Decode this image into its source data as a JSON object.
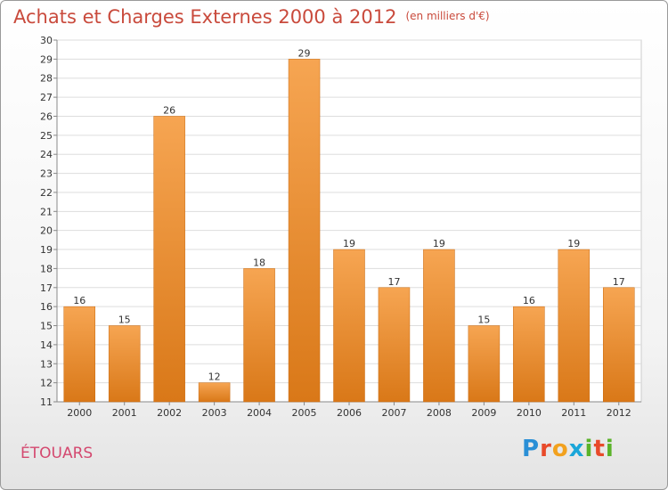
{
  "header": {
    "title": "Achats et Charges Externes 2000 à 2012",
    "unit": "(en milliers d'€)"
  },
  "footer": {
    "place": "ÉTOUARS",
    "brand_letters": [
      "P",
      "r",
      "o",
      "x",
      "i",
      "t",
      "i"
    ],
    "brand_colors": [
      "#2a8fd6",
      "#e84a2a",
      "#f2a11e",
      "#1aa6d9",
      "#5bb32a",
      "#e84a2a",
      "#5bb32a"
    ]
  },
  "colors": {
    "title": "#c94a3c",
    "bar_top": "#f6a552",
    "bar_bottom": "#d97818",
    "grid": "#dddddd",
    "place": "#d4486f"
  },
  "chart_data": {
    "type": "bar",
    "title": "Achats et Charges Externes 2000 à 2012",
    "subtitle": "(en milliers d'€)",
    "categories": [
      "2000",
      "2001",
      "2002",
      "2003",
      "2004",
      "2005",
      "2006",
      "2007",
      "2008",
      "2009",
      "2010",
      "2011",
      "2012"
    ],
    "values": [
      16,
      15,
      26,
      12,
      18,
      29,
      19,
      17,
      19,
      15,
      16,
      19,
      17
    ],
    "ylim": [
      11,
      30
    ],
    "yticks": [
      11,
      12,
      13,
      14,
      15,
      16,
      17,
      18,
      19,
      20,
      21,
      22,
      23,
      24,
      25,
      26,
      27,
      28,
      29,
      30
    ],
    "grid": true,
    "data_labels": true
  }
}
